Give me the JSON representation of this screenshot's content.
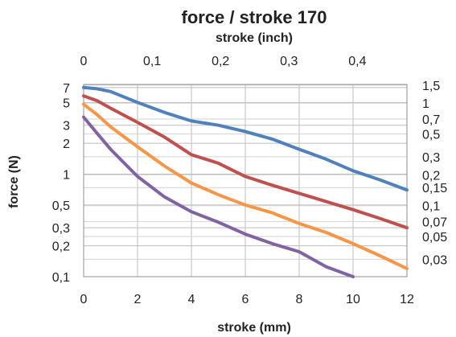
{
  "chart_data": {
    "type": "line",
    "title": "force / stroke 170",
    "xlabel": "stroke (mm)",
    "x2label": "stroke (inch)",
    "ylabel": "force (N)",
    "xlim": [
      0,
      12
    ],
    "x2lim": [
      0,
      0.4724
    ],
    "ylim": [
      0.1,
      7.5
    ],
    "yscale": "log",
    "grid": true,
    "x_ticks": [
      "0",
      "2",
      "4",
      "6",
      "8",
      "10",
      "12"
    ],
    "x2_ticks": [
      "0",
      "0,1",
      "0,2",
      "0,3",
      "0,4"
    ],
    "y_ticks": [
      "0,1",
      "0,2",
      "0,3",
      "0,5",
      "1",
      "2",
      "3",
      "5",
      "7"
    ],
    "y2_ticks": [
      "0,03",
      "0,05",
      "0,07",
      "0,1",
      "0,15",
      "0,2",
      "0,3",
      "0,5",
      "0,7",
      "1",
      "1,5"
    ],
    "series": [
      {
        "color": "#4f81bd",
        "x": [
          0,
          0.5,
          1,
          2,
          3,
          4,
          5,
          6,
          7,
          8,
          9,
          10,
          11,
          12
        ],
        "values": [
          7.0,
          6.8,
          6.4,
          5.0,
          4.0,
          3.3,
          3.0,
          2.6,
          2.2,
          1.75,
          1.4,
          1.08,
          0.88,
          0.7
        ]
      },
      {
        "color": "#c0504d",
        "x": [
          0,
          0.5,
          1,
          2,
          3,
          4,
          5,
          6,
          7,
          8,
          9,
          10,
          11,
          12
        ],
        "values": [
          5.8,
          5.2,
          4.4,
          3.2,
          2.3,
          1.55,
          1.28,
          0.95,
          0.78,
          0.65,
          0.54,
          0.45,
          0.37,
          0.3
        ]
      },
      {
        "color": "#f79646",
        "x": [
          0,
          0.5,
          1,
          2,
          3,
          4,
          5,
          6,
          7,
          8,
          9,
          10,
          11,
          12
        ],
        "values": [
          4.8,
          3.8,
          2.9,
          1.85,
          1.2,
          0.82,
          0.63,
          0.5,
          0.42,
          0.33,
          0.27,
          0.21,
          0.16,
          0.12
        ]
      },
      {
        "color": "#8064a2",
        "x": [
          0,
          0.5,
          1,
          2,
          3,
          4,
          5,
          6,
          7,
          8,
          9,
          10
        ],
        "values": [
          3.6,
          2.5,
          1.75,
          0.95,
          0.6,
          0.43,
          0.34,
          0.26,
          0.21,
          0.175,
          0.125,
          0.1
        ]
      }
    ]
  }
}
